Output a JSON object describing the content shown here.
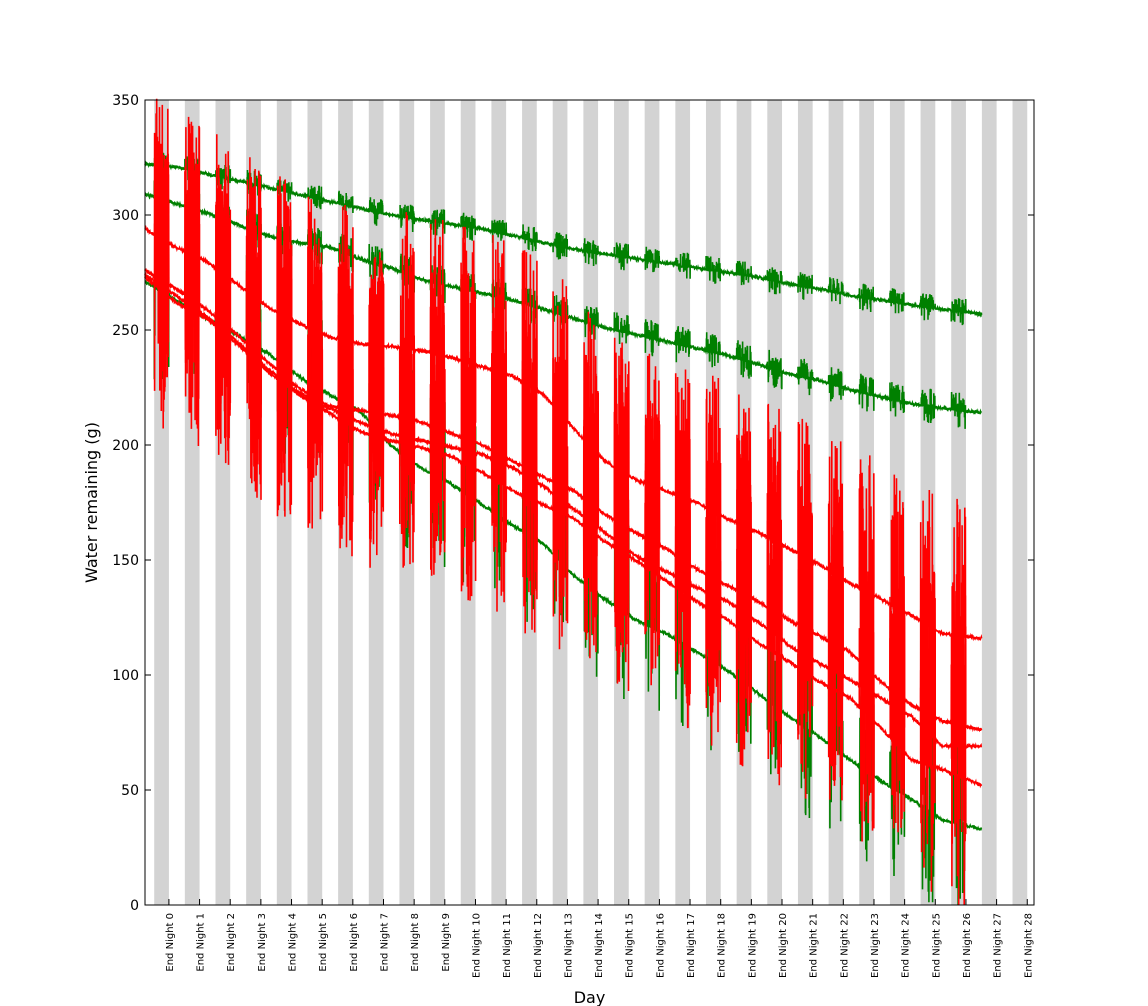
{
  "chart_data": {
    "type": "line",
    "title": "",
    "xlabel": "Day",
    "ylabel": "Water remaining (g)",
    "ylim": [
      0,
      350
    ],
    "xlim": [
      0,
      29
    ],
    "yticks": [
      0,
      50,
      100,
      150,
      200,
      250,
      300,
      350
    ],
    "xtick_labels": [
      "End Night 0",
      "End Night 1",
      "End Night 2",
      "End Night 3",
      "End Night 4",
      "End Night 5",
      "End Night 6",
      "End Night 7",
      "End Night 8",
      "End Night 9",
      "End Night 10",
      "End Night 11",
      "End Night 12",
      "End Night 13",
      "End Night 14",
      "End Night 15",
      "End Night 16",
      "End Night 17",
      "End Night 18",
      "End Night 19",
      "End Night 20",
      "End Night 21",
      "End Night 22",
      "End Night 23",
      "End Night 24",
      "End Night 25",
      "End Night 26",
      "End Night 27",
      "End Night 28"
    ],
    "night_bands": {
      "start_offset": 0.3,
      "width": 0.48,
      "color": "#d3d3d3"
    },
    "grid": false,
    "legend": "none",
    "series": [
      {
        "color": "#008000",
        "x": [
          0,
          1,
          2,
          3,
          4,
          5,
          6,
          7,
          8,
          9,
          10,
          11,
          12,
          13,
          14,
          15,
          16,
          17,
          18,
          19,
          20,
          21,
          22,
          23,
          24,
          25,
          26,
          27.3
        ],
        "values": [
          322,
          321,
          318,
          315,
          312,
          309,
          306,
          303,
          300,
          298,
          296,
          294,
          291,
          288,
          285,
          283,
          281,
          279,
          277,
          275,
          273,
          270,
          268,
          265,
          263,
          261,
          259,
          257
        ],
        "spike_amp": 6
      },
      {
        "color": "#008000",
        "x": [
          0,
          1,
          2,
          3,
          4,
          5,
          6,
          7,
          8,
          9,
          10,
          11,
          12,
          13,
          14,
          15,
          16,
          17,
          18,
          19,
          20,
          21,
          22,
          23,
          24,
          25,
          26,
          27.3
        ],
        "values": [
          309,
          305,
          301,
          296,
          291,
          288,
          286,
          281,
          277,
          272,
          269,
          266,
          263,
          259,
          255,
          251,
          248,
          245,
          242,
          239,
          235,
          231,
          228,
          224,
          221,
          218,
          216,
          214
        ],
        "spike_amp": 8
      },
      {
        "color": "#008000",
        "x": [
          0,
          1,
          2,
          3,
          4,
          5,
          6,
          7,
          8,
          9,
          10,
          11,
          12,
          13,
          14,
          15,
          16,
          17,
          18,
          19,
          20,
          21,
          22,
          23,
          24,
          25,
          26,
          27.3
        ],
        "values": [
          271,
          263,
          255,
          248,
          240,
          230,
          222,
          215,
          200,
          190,
          183,
          174,
          165,
          157,
          143,
          133,
          124,
          118,
          110,
          102,
          92,
          82,
          73,
          63,
          54,
          46,
          37,
          33
        ],
        "spike_amp": 40
      },
      {
        "color": "#ff0000",
        "x": [
          0,
          1,
          2,
          3,
          4,
          5,
          6,
          7,
          8,
          9,
          10,
          11,
          12,
          13,
          14,
          15,
          16,
          17,
          18,
          19,
          20,
          21,
          22,
          23,
          24,
          25,
          26,
          27.3
        ],
        "values": [
          294,
          286,
          280,
          270,
          260,
          253,
          247,
          244,
          243,
          241,
          238,
          234,
          230,
          222,
          207,
          193,
          185,
          180,
          175,
          168,
          162,
          155,
          148,
          140,
          133,
          126,
          118,
          116
        ],
        "spike_amp": 60
      },
      {
        "color": "#ff0000",
        "x": [
          0,
          1,
          2,
          3,
          4,
          5,
          6,
          7,
          8,
          9,
          10,
          11,
          12,
          13,
          14,
          15,
          16,
          17,
          18,
          19,
          20,
          21,
          22,
          23,
          24,
          25,
          26,
          27.3
        ],
        "values": [
          276,
          268,
          259,
          248,
          236,
          225,
          217,
          215,
          213,
          210,
          205,
          200,
          193,
          186,
          180,
          170,
          162,
          155,
          146,
          139,
          132,
          124,
          117,
          110,
          97,
          87,
          80,
          76
        ],
        "spike_amp": 60
      },
      {
        "color": "#ff0000",
        "x": [
          0,
          1,
          2,
          3,
          4,
          5,
          6,
          7,
          8,
          9,
          10,
          11,
          12,
          13,
          14,
          15,
          16,
          17,
          18,
          19,
          20,
          21,
          22,
          23,
          24,
          25,
          26,
          27.3
        ],
        "values": [
          274,
          265,
          256,
          245,
          233,
          223,
          216,
          210,
          205,
          202,
          199,
          196,
          190,
          182,
          172,
          162,
          152,
          145,
          138,
          132,
          123,
          113,
          105,
          98,
          90,
          82,
          69,
          69
        ],
        "spike_amp": 60
      },
      {
        "color": "#ff0000",
        "x": [
          0,
          1,
          2,
          3,
          4,
          5,
          6,
          7,
          8,
          9,
          10,
          11,
          12,
          13,
          14,
          15,
          16,
          17,
          18,
          19,
          20,
          21,
          22,
          23,
          24,
          25,
          26,
          27.3
        ],
        "values": [
          273,
          262,
          255,
          244,
          232,
          222,
          214,
          206,
          202,
          199,
          195,
          188,
          180,
          174,
          168,
          158,
          150,
          141,
          132,
          124,
          114,
          106,
          97,
          90,
          77,
          63,
          59,
          52
        ],
        "spike_amp": 60
      }
    ]
  }
}
